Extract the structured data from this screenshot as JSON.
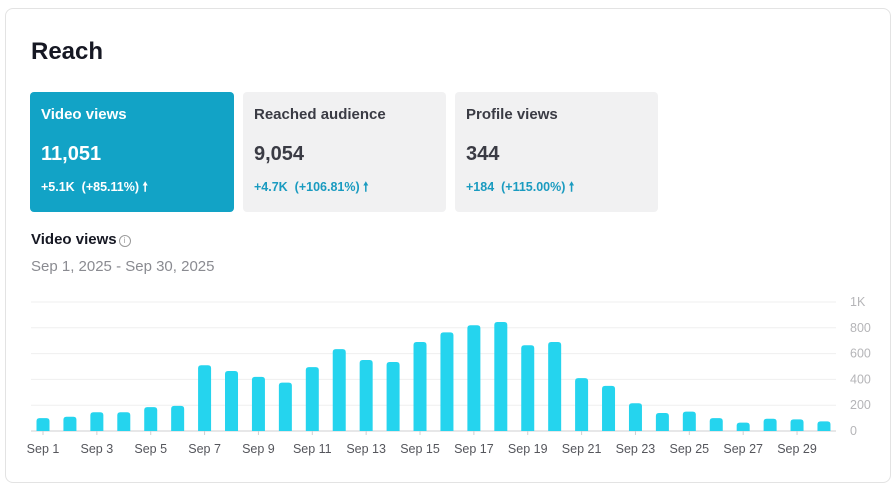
{
  "title": "Reach",
  "cards": [
    {
      "label": "Video views",
      "value": "11,051",
      "change": "+5.1K",
      "percent": "(+85.11%)",
      "active": true
    },
    {
      "label": "Reached audience",
      "value": "9,054",
      "change": "+4.7K",
      "percent": "(+106.81%)",
      "active": false
    },
    {
      "label": "Profile views",
      "value": "344",
      "change": "+184",
      "percent": "(+115.00%)",
      "active": false
    }
  ],
  "chart_title": "Video views",
  "date_range": "Sep 1, 2025 - Sep 30, 2025",
  "colors": {
    "accent": "#12a3c6",
    "bar": "#25d4ee"
  },
  "chart_data": {
    "type": "bar",
    "categories": [
      "Sep 1",
      "Sep 2",
      "Sep 3",
      "Sep 4",
      "Sep 5",
      "Sep 6",
      "Sep 7",
      "Sep 8",
      "Sep 9",
      "Sep 10",
      "Sep 11",
      "Sep 12",
      "Sep 13",
      "Sep 14",
      "Sep 15",
      "Sep 16",
      "Sep 17",
      "Sep 18",
      "Sep 19",
      "Sep 20",
      "Sep 21",
      "Sep 22",
      "Sep 23",
      "Sep 24",
      "Sep 25",
      "Sep 26",
      "Sep 27",
      "Sep 28",
      "Sep 29",
      "Sep 30"
    ],
    "values": [
      100,
      110,
      145,
      145,
      185,
      195,
      510,
      465,
      420,
      375,
      495,
      635,
      550,
      535,
      690,
      765,
      820,
      845,
      665,
      690,
      410,
      350,
      215,
      140,
      150,
      100,
      65,
      95,
      90,
      75
    ],
    "x_tick_labels": [
      "Sep 1",
      "Sep 3",
      "Sep 5",
      "Sep 7",
      "Sep 9",
      "Sep 11",
      "Sep 13",
      "Sep 15",
      "Sep 17",
      "Sep 19",
      "Sep 21",
      "Sep 23",
      "Sep 25",
      "Sep 27",
      "Sep 29"
    ],
    "y_ticks": [
      0,
      200,
      400,
      600,
      800,
      1000
    ],
    "y_tick_labels": [
      "0",
      "200",
      "400",
      "600",
      "800",
      "1K"
    ],
    "ylim": [
      0,
      1000
    ],
    "grid": true,
    "title": "Video views"
  }
}
